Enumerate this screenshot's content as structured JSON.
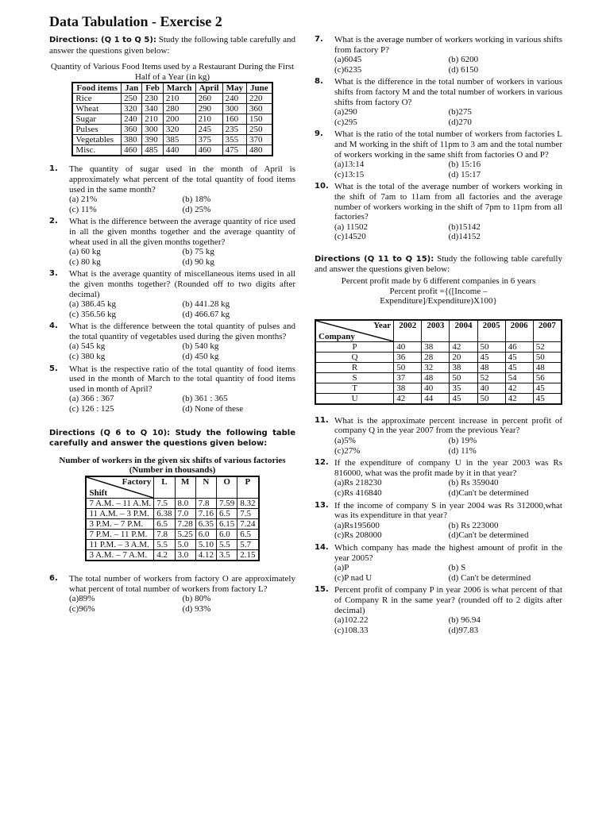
{
  "title": "Data Tabulation - Exercise 2",
  "left": {
    "directions1": {
      "label": "Directions: (Q 1 to Q 5):",
      "text": " Study the following table carefully and answer the questions given below:"
    },
    "table1": {
      "caption": "Quantity of Various Food Items used by a Restaurant During the First Half of a Year (in kg)",
      "headers": [
        "Food items",
        "Jan",
        "Feb",
        "March",
        "April",
        "May",
        "June"
      ],
      "rows": [
        [
          "Rice",
          "250",
          "230",
          "210",
          "260",
          "240",
          "220"
        ],
        [
          "Wheat",
          "320",
          "340",
          "280",
          "290",
          "300",
          "360"
        ],
        [
          "Sugar",
          "240",
          "210",
          "200",
          "210",
          "160",
          "150"
        ],
        [
          "Pulses",
          "360",
          "300",
          "320",
          "245",
          "235",
          "250"
        ],
        [
          "Vegetables",
          "380",
          "390",
          "385",
          "375",
          "355",
          "370"
        ],
        [
          "Misc.",
          "460",
          "485",
          "440",
          "460",
          "475",
          "480"
        ]
      ]
    },
    "questions1": [
      {
        "num": "1.",
        "text": "The quantity of sugar used in the month of April is approximately what percent of the total quantity of food items used in the same month?",
        "options": [
          "(a) 21%",
          "(b) 18%",
          "(c) 11%",
          "(d) 25%"
        ]
      },
      {
        "num": "2.",
        "text": "What is the difference between the average quantity of rice used in all the given months together and the average quantity of wheat used in all the given months together?",
        "options": [
          "(a) 60 kg",
          "(b) 75 kg",
          "(c) 80 kg",
          "(d) 90 kg"
        ]
      },
      {
        "num": "3.",
        "text": "What is the average quantity of miscellaneous items used in all the given months together? (Rounded off to two digits after decimal)",
        "options": [
          "(a) 386.45 kg",
          "(b) 441.28 kg",
          "(c) 356.56 kg",
          "(d) 466.67 kg"
        ]
      },
      {
        "num": "4.",
        "text": "What is the difference between the total quantity of pulses and the total quantity of vegetables used during the given months?",
        "options": [
          "(a) 545 kg",
          "(b) 540 kg",
          "(c) 380 kg",
          "(d) 450 kg"
        ]
      },
      {
        "num": "5.",
        "text": "What is the respective ratio of the total quantity of food items used in the month of March to the total quantity of food items used in month of April?",
        "options": [
          "(a) 366 : 367",
          "(b) 361 : 365",
          "(c) 126 : 125",
          "(d) None of these"
        ]
      }
    ],
    "directions2": {
      "label": "Directions (Q 6 to Q 10): Study the following table carefully and answer the questions given below:"
    },
    "table2": {
      "caption": "Number of workers in the given six shifts of various factories",
      "subcaption": "(Number in thousands)",
      "corner_top": "Factory",
      "corner_bottom": "Shift",
      "headers": [
        "L",
        "M",
        "N",
        "O",
        "P"
      ],
      "rows": [
        [
          "7 A.M. – 11 A.M.",
          "7.5",
          "8.0",
          "7.8",
          "7.59",
          "8.32"
        ],
        [
          "11 A.M. – 3 P.M.",
          "6.38",
          "7.0",
          "7.16",
          "6.5",
          "7.5"
        ],
        [
          "3 P.M. – 7 P.M.",
          "6.5",
          "7.28",
          "6.35",
          "6.15",
          "7.24"
        ],
        [
          "7 P.M. – 11 P.M.",
          "7.8",
          "5.25",
          "6.0",
          "6.0",
          "6.5"
        ],
        [
          "11 P.M. – 3 A.M.",
          "5.5",
          "5.0",
          "5.10",
          "5.5",
          "5.7"
        ],
        [
          "3 A.M. – 7 A.M.",
          "4.2",
          "3.0",
          "4.12",
          "3.5",
          "2.15"
        ]
      ]
    },
    "questions2": [
      {
        "num": "6.",
        "text": "The total number of workers from factory O are approximately what percent of total number of workers from factory L?",
        "options": [
          "(a)89%",
          "(b) 80%",
          "(c)96%",
          "(d) 93%"
        ]
      }
    ]
  },
  "right": {
    "questions1": [
      {
        "num": "7.",
        "text": "What is the average number of workers working in various shifts from factory P?",
        "options": [
          "(a)6045",
          "(b) 6200",
          "(c)6235",
          "(d) 6150"
        ]
      },
      {
        "num": "8.",
        "text": "What is the difference in the total number of workers in various shifts from factory M and the total number of workers in various shifts from factory O?",
        "options": [
          "(a)290",
          "(b)275",
          "(c)295",
          "(d)270"
        ]
      },
      {
        "num": "9.",
        "text": "What is the ratio of the total number of workers from factories L and M working in the shift of 11pm to 3 am and the total number of workers working in the same shift from factories O and P?",
        "options": [
          "(a)13:14",
          "(b) 15:16",
          "(c)13:15",
          "(d) 15:17"
        ]
      },
      {
        "num": "10.",
        "text": "What is the total of the average number of workers working in the shift of 7am to 11am from all factories and the average number of workers working in the shift of 7pm to 11pm from all factories?",
        "options": [
          "(a) 11502",
          "(b)15142",
          "(c)14520",
          "(d)14152"
        ]
      }
    ],
    "directions3": {
      "label": "Directions (Q 11 to Q 15):",
      "text": " Study the following table carefully and answer the questions given below:"
    },
    "table3": {
      "caption": "Percent profit made by 6 different companies in 6 years",
      "formula1": "Percent profit ={([Income –",
      "formula2": "Expenditure]/Expenditure)X100}",
      "corner_top": "Year",
      "corner_bottom": "Company",
      "headers": [
        "2002",
        "2003",
        "2004",
        "2005",
        "2006",
        "2007"
      ],
      "rows": [
        [
          "P",
          "40",
          "38",
          "42",
          "50",
          "46",
          "52"
        ],
        [
          "Q",
          "36",
          "28",
          "20",
          "45",
          "45",
          "50"
        ],
        [
          "R",
          "50",
          "32",
          "38",
          "48",
          "45",
          "48"
        ],
        [
          "S",
          "37",
          "48",
          "50",
          "52",
          "54",
          "56"
        ],
        [
          "T",
          "38",
          "40",
          "35",
          "40",
          "42",
          "45"
        ],
        [
          "U",
          "42",
          "44",
          "45",
          "50",
          "42",
          "45"
        ]
      ]
    },
    "questions2": [
      {
        "num": "11.",
        "text": "What is the approximate percent increase in percent profit of company Q in the year 2007 from the previous Year?",
        "options": [
          "(a)5%",
          "(b) 19%",
          "(c)27%",
          "(d) 11%"
        ]
      },
      {
        "num": "12.",
        "text": "If the expenditure of company U in the year 2003 was Rs 816000, what was the profit made by it in that year?",
        "options": [
          "(a)Rs 218230",
          "(b) Rs 359040",
          "(c)Rs 416840",
          "(d)Can't be determined"
        ]
      },
      {
        "num": "13.",
        "text": "If the income of company S in year 2004 was Rs 312000,what was its expenditure in that year?",
        "options": [
          "(a)Rs195600",
          "(b) Rs 223000",
          "(c)Rs 208000",
          "(d)Can't be determined"
        ]
      },
      {
        "num": "14.",
        "text": "Which company has made the highest amount of profit in the year 2005?",
        "options": [
          "(a)P",
          "(b) S",
          "(c)P nad U",
          "(d) Can't be determined"
        ]
      },
      {
        "num": "15.",
        "text": "Percent profit of company P in year 2006 is what percent of that of Company R in the same year? (rounded off to 2 digits after decimal)",
        "options": [
          "(a)102.22",
          "(b) 96.94",
          "(c)108.33",
          "(d)97.83"
        ]
      }
    ]
  }
}
